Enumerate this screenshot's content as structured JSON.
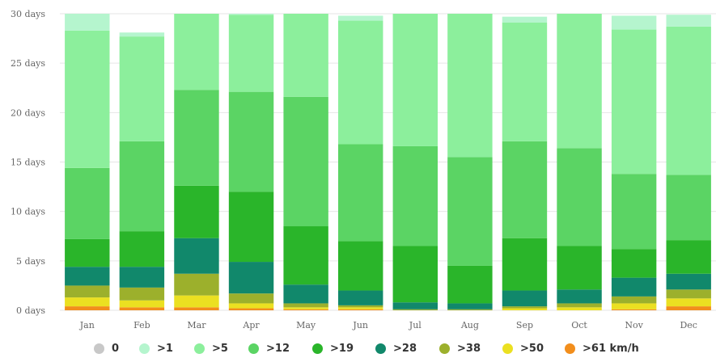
{
  "chart_data": {
    "type": "bar",
    "stacked": true,
    "title": "",
    "xlabel": "",
    "ylabel": "",
    "ylim": [
      0,
      30
    ],
    "yticks": [
      0,
      5,
      10,
      15,
      20,
      25,
      30
    ],
    "ytick_labels": [
      "0 days",
      "5 days",
      "10 days",
      "15 days",
      "20 days",
      "25 days",
      "30 days"
    ],
    "grid": true,
    "legend_position": "bottom",
    "categories": [
      "Jan",
      "Feb",
      "Mar",
      "Apr",
      "May",
      "Jun",
      "Jul",
      "Aug",
      "Sep",
      "Oct",
      "Nov",
      "Dec"
    ],
    "series": [
      {
        "name": ">61 km/h",
        "color": "#f28e1c",
        "values": [
          0.4,
          0.3,
          0.3,
          0.2,
          0.1,
          0.1,
          0.0,
          0.0,
          0.0,
          0.0,
          0.1,
          0.4
        ]
      },
      {
        "name": ">50",
        "color": "#ebe021",
        "values": [
          0.9,
          0.7,
          1.2,
          0.5,
          0.2,
          0.2,
          0.0,
          0.0,
          0.2,
          0.3,
          0.6,
          0.8
        ]
      },
      {
        "name": ">38",
        "color": "#9cb02c",
        "values": [
          1.2,
          1.3,
          2.2,
          1.0,
          0.4,
          0.2,
          0.1,
          0.1,
          0.2,
          0.4,
          0.7,
          0.9
        ]
      },
      {
        "name": ">28",
        "color": "#11886b",
        "values": [
          1.9,
          2.1,
          3.6,
          3.2,
          1.9,
          1.5,
          0.7,
          0.6,
          1.6,
          1.4,
          1.9,
          1.6
        ]
      },
      {
        "name": ">19",
        "color": "#2ab52a",
        "values": [
          2.8,
          3.6,
          5.3,
          7.1,
          5.9,
          5.0,
          5.7,
          3.8,
          5.3,
          4.4,
          2.9,
          3.4
        ]
      },
      {
        "name": ">12",
        "color": "#5bd464",
        "values": [
          7.2,
          9.1,
          9.7,
          10.1,
          13.1,
          9.8,
          10.1,
          11.0,
          9.8,
          9.9,
          7.6,
          6.6
        ]
      },
      {
        "name": ">5",
        "color": "#8cef9c",
        "values": [
          13.9,
          10.6,
          7.7,
          7.8,
          8.4,
          12.5,
          13.4,
          14.5,
          12.0,
          13.6,
          14.6,
          15.0
        ]
      },
      {
        "name": ">1",
        "color": "#b5f5ce",
        "values": [
          1.7,
          0.4,
          0.0,
          0.1,
          0.0,
          0.5,
          0.0,
          0.0,
          0.6,
          0.0,
          1.4,
          1.2
        ]
      },
      {
        "name": "0",
        "color": "#c8c8c8",
        "values": [
          0.0,
          0.0,
          0.0,
          0.0,
          0.0,
          0.0,
          0.0,
          0.0,
          0.0,
          0.0,
          0.0,
          0.0
        ]
      }
    ]
  },
  "legend": [
    {
      "label": "0",
      "color": "#c8c8c8"
    },
    {
      "label": ">1",
      "color": "#b5f5ce"
    },
    {
      "label": ">5",
      "color": "#8cef9c"
    },
    {
      "label": ">12",
      "color": "#5bd464"
    },
    {
      "label": ">19",
      "color": "#2ab52a"
    },
    {
      "label": ">28",
      "color": "#11886b"
    },
    {
      "label": ">38",
      "color": "#9cb02c"
    },
    {
      "label": ">50",
      "color": "#ebe021"
    },
    {
      "label": ">61 km/h",
      "color": "#f28e1c"
    }
  ]
}
